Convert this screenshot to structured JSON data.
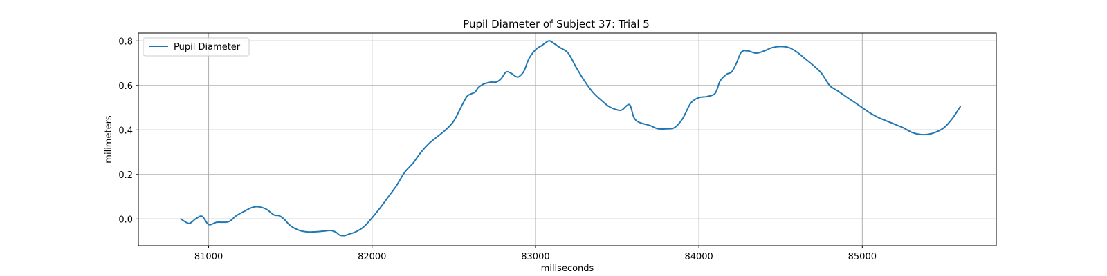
{
  "chart_data": {
    "type": "line",
    "title": "Pupil Diameter of Subject 37: Trial 5",
    "xlabel": "miliseconds",
    "ylabel": "milimeters",
    "xlim": [
      80570,
      85820
    ],
    "ylim": [
      -0.12,
      0.835
    ],
    "xticks": [
      81000,
      82000,
      83000,
      84000,
      85000
    ],
    "yticks": [
      0.0,
      0.2,
      0.4,
      0.6,
      0.8
    ],
    "xtick_labels": [
      "81000",
      "82000",
      "83000",
      "84000",
      "85000"
    ],
    "ytick_labels": [
      "0.0",
      "0.2",
      "0.4",
      "0.6",
      "0.8"
    ],
    "grid": true,
    "legend_position": "top-left",
    "series": [
      {
        "name": "Pupil Diameter",
        "color": "#1f77b4",
        "x": [
          80830,
          80880,
          80920,
          80960,
          81000,
          81050,
          81100,
          81130,
          81170,
          81220,
          81260,
          81300,
          81350,
          81400,
          81430,
          81460,
          81500,
          81550,
          81600,
          81650,
          81700,
          81750,
          81780,
          81800,
          81830,
          81860,
          81900,
          81950,
          82000,
          82050,
          82100,
          82150,
          82200,
          82250,
          82300,
          82350,
          82400,
          82450,
          82500,
          82550,
          82580,
          82600,
          82630,
          82650,
          82680,
          82700,
          82730,
          82760,
          82790,
          82820,
          82850,
          82880,
          82900,
          82930,
          82960,
          83000,
          83040,
          83080,
          83100,
          83120,
          83150,
          83200,
          83250,
          83300,
          83350,
          83400,
          83450,
          83500,
          83530,
          83560,
          83580,
          83600,
          83620,
          83650,
          83700,
          83750,
          83800,
          83850,
          83900,
          83950,
          84000,
          84050,
          84100,
          84130,
          84170,
          84200,
          84230,
          84260,
          84300,
          84350,
          84400,
          84450,
          84500,
          84550,
          84600,
          84650,
          84700,
          84750,
          84800,
          84850,
          84900,
          84950,
          85000,
          85050,
          85100,
          85150,
          85200,
          85250,
          85300,
          85350,
          85400,
          85450,
          85500,
          85550,
          85600
        ],
        "y": [
          0.0,
          -0.02,
          0.0,
          0.012,
          -0.025,
          -0.015,
          -0.015,
          -0.01,
          0.015,
          0.035,
          0.05,
          0.055,
          0.045,
          0.018,
          0.015,
          0.0,
          -0.03,
          -0.05,
          -0.058,
          -0.058,
          -0.055,
          -0.052,
          -0.06,
          -0.072,
          -0.075,
          -0.068,
          -0.058,
          -0.035,
          0.005,
          0.05,
          0.1,
          0.15,
          0.21,
          0.25,
          0.3,
          0.34,
          0.37,
          0.4,
          0.44,
          0.51,
          0.55,
          0.56,
          0.57,
          0.59,
          0.605,
          0.61,
          0.615,
          0.615,
          0.63,
          0.66,
          0.655,
          0.64,
          0.64,
          0.665,
          0.72,
          0.76,
          0.78,
          0.8,
          0.795,
          0.785,
          0.77,
          0.745,
          0.68,
          0.62,
          0.57,
          0.535,
          0.505,
          0.49,
          0.49,
          0.51,
          0.51,
          0.46,
          0.44,
          0.43,
          0.42,
          0.405,
          0.405,
          0.41,
          0.45,
          0.52,
          0.545,
          0.55,
          0.565,
          0.62,
          0.65,
          0.66,
          0.7,
          0.75,
          0.755,
          0.745,
          0.755,
          0.77,
          0.775,
          0.77,
          0.75,
          0.72,
          0.69,
          0.655,
          0.6,
          0.575,
          0.55,
          0.525,
          0.5,
          0.475,
          0.455,
          0.44,
          0.425,
          0.41,
          0.39,
          0.38,
          0.38,
          0.39,
          0.41,
          0.45,
          0.505
        ]
      }
    ]
  }
}
